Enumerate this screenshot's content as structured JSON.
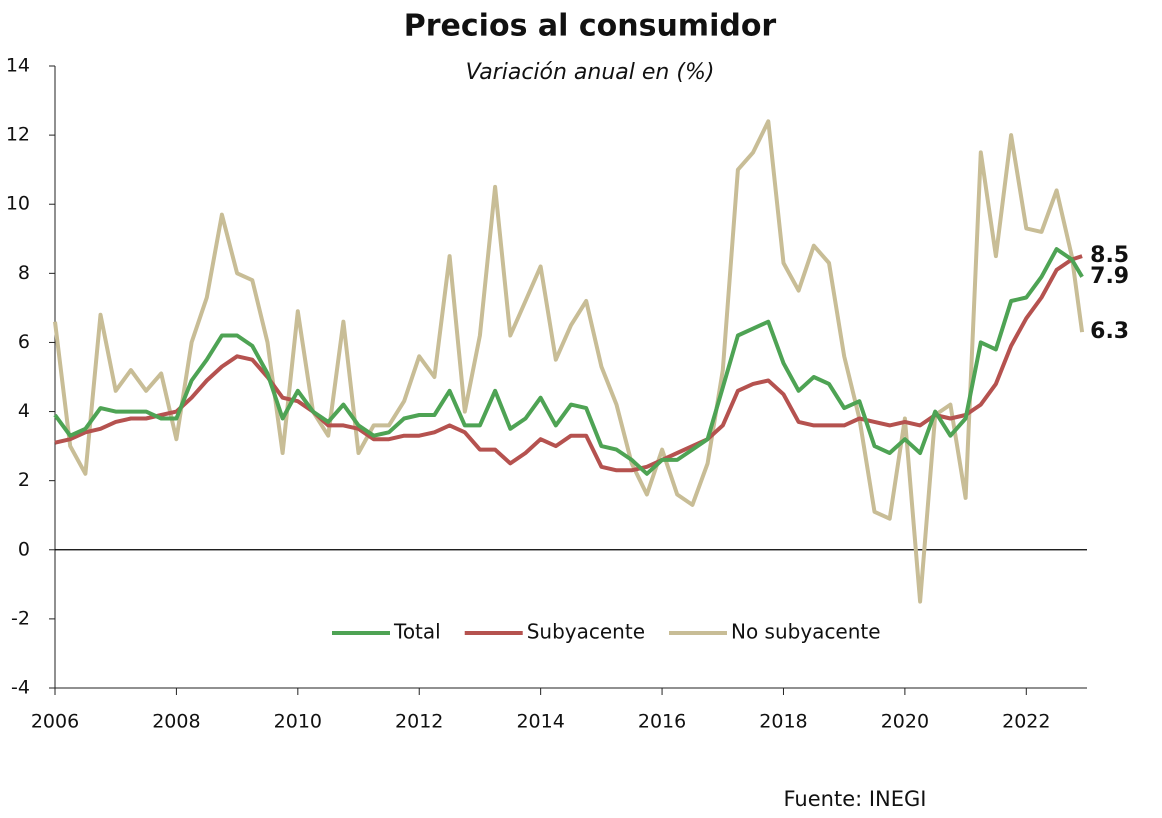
{
  "chart_data": {
    "type": "line",
    "title": "Precios al consumidor",
    "subtitle": "Variación anual en (%)",
    "source": "Fuente: INEGI",
    "x": [
      2006,
      2006.25,
      2006.5,
      2006.75,
      2007,
      2007.25,
      2007.5,
      2007.75,
      2008,
      2008.25,
      2008.5,
      2008.75,
      2009,
      2009.25,
      2009.5,
      2009.75,
      2010,
      2010.25,
      2010.5,
      2010.75,
      2011,
      2011.25,
      2011.5,
      2011.75,
      2012,
      2012.25,
      2012.5,
      2012.75,
      2013,
      2013.25,
      2013.5,
      2013.75,
      2014,
      2014.25,
      2014.5,
      2014.75,
      2015,
      2015.25,
      2015.5,
      2015.75,
      2016,
      2016.25,
      2016.5,
      2016.75,
      2017,
      2017.25,
      2017.5,
      2017.75,
      2018,
      2018.25,
      2018.5,
      2018.75,
      2019,
      2019.25,
      2019.5,
      2019.75,
      2020,
      2020.25,
      2020.5,
      2020.75,
      2021,
      2021.25,
      2021.5,
      2021.75,
      2022,
      2022.25,
      2022.5,
      2022.75,
      2022.92
    ],
    "series": [
      {
        "name": "Total",
        "color": "#4ea354",
        "label_color": "#5aa860",
        "values": [
          3.9,
          3.3,
          3.5,
          4.1,
          4.0,
          4.0,
          4.0,
          3.8,
          3.8,
          4.9,
          5.5,
          6.2,
          6.2,
          5.9,
          5.1,
          3.8,
          4.6,
          4.0,
          3.7,
          4.2,
          3.6,
          3.3,
          3.4,
          3.8,
          3.9,
          3.9,
          4.6,
          3.6,
          3.6,
          4.6,
          3.5,
          3.8,
          4.4,
          3.6,
          4.2,
          4.1,
          3.0,
          2.9,
          2.6,
          2.2,
          2.6,
          2.6,
          2.9,
          3.2,
          4.7,
          6.2,
          6.4,
          6.6,
          5.4,
          4.6,
          5.0,
          4.8,
          4.1,
          4.3,
          3.0,
          2.8,
          3.2,
          2.8,
          4.0,
          3.3,
          3.8,
          6.0,
          5.8,
          7.2,
          7.3,
          7.9,
          8.7,
          8.4,
          7.9
        ]
      },
      {
        "name": "Subyacente",
        "color": "#b5524f",
        "label_color": "#a83a35",
        "values": [
          3.1,
          3.2,
          3.4,
          3.5,
          3.7,
          3.8,
          3.8,
          3.9,
          4.0,
          4.4,
          4.9,
          5.3,
          5.6,
          5.5,
          5.0,
          4.4,
          4.3,
          4.0,
          3.6,
          3.6,
          3.5,
          3.2,
          3.2,
          3.3,
          3.3,
          3.4,
          3.6,
          3.4,
          2.9,
          2.9,
          2.5,
          2.8,
          3.2,
          3.0,
          3.3,
          3.3,
          2.4,
          2.3,
          2.3,
          2.4,
          2.6,
          2.8,
          3.0,
          3.2,
          3.6,
          4.6,
          4.8,
          4.9,
          4.5,
          3.7,
          3.6,
          3.6,
          3.6,
          3.8,
          3.7,
          3.6,
          3.7,
          3.6,
          3.9,
          3.8,
          3.9,
          4.2,
          4.8,
          5.9,
          6.7,
          7.3,
          8.1,
          8.4,
          8.5
        ]
      },
      {
        "name": "No subyacente",
        "color": "#c8bd96",
        "label_color": "#c8bd96",
        "values": [
          6.6,
          3.0,
          2.2,
          6.8,
          4.6,
          5.2,
          4.6,
          5.1,
          3.2,
          6.0,
          7.3,
          9.7,
          8.0,
          7.8,
          6.0,
          2.8,
          6.9,
          4.0,
          3.3,
          6.6,
          2.8,
          3.6,
          3.6,
          4.3,
          5.6,
          5.0,
          8.5,
          4.0,
          6.2,
          10.5,
          6.2,
          7.2,
          8.2,
          5.5,
          6.5,
          7.2,
          5.3,
          4.2,
          2.5,
          1.6,
          2.9,
          1.6,
          1.3,
          2.5,
          5.2,
          11.0,
          11.5,
          12.4,
          8.3,
          7.5,
          8.8,
          8.3,
          5.6,
          3.8,
          1.1,
          0.9,
          3.8,
          -1.5,
          3.9,
          4.2,
          1.5,
          11.5,
          8.5,
          12.0,
          9.3,
          9.2,
          10.4,
          8.5,
          6.3
        ]
      }
    ],
    "label_last": true,
    "xlim": [
      2006,
      2023
    ],
    "xticks": [
      2006,
      2008,
      2010,
      2012,
      2014,
      2016,
      2018,
      2020,
      2022
    ],
    "ylim": [
      -4,
      14
    ],
    "yticks": [
      -4,
      -2,
      0,
      2,
      4,
      6,
      8,
      10,
      12,
      14
    ],
    "grid": false,
    "legend": "bottom"
  }
}
